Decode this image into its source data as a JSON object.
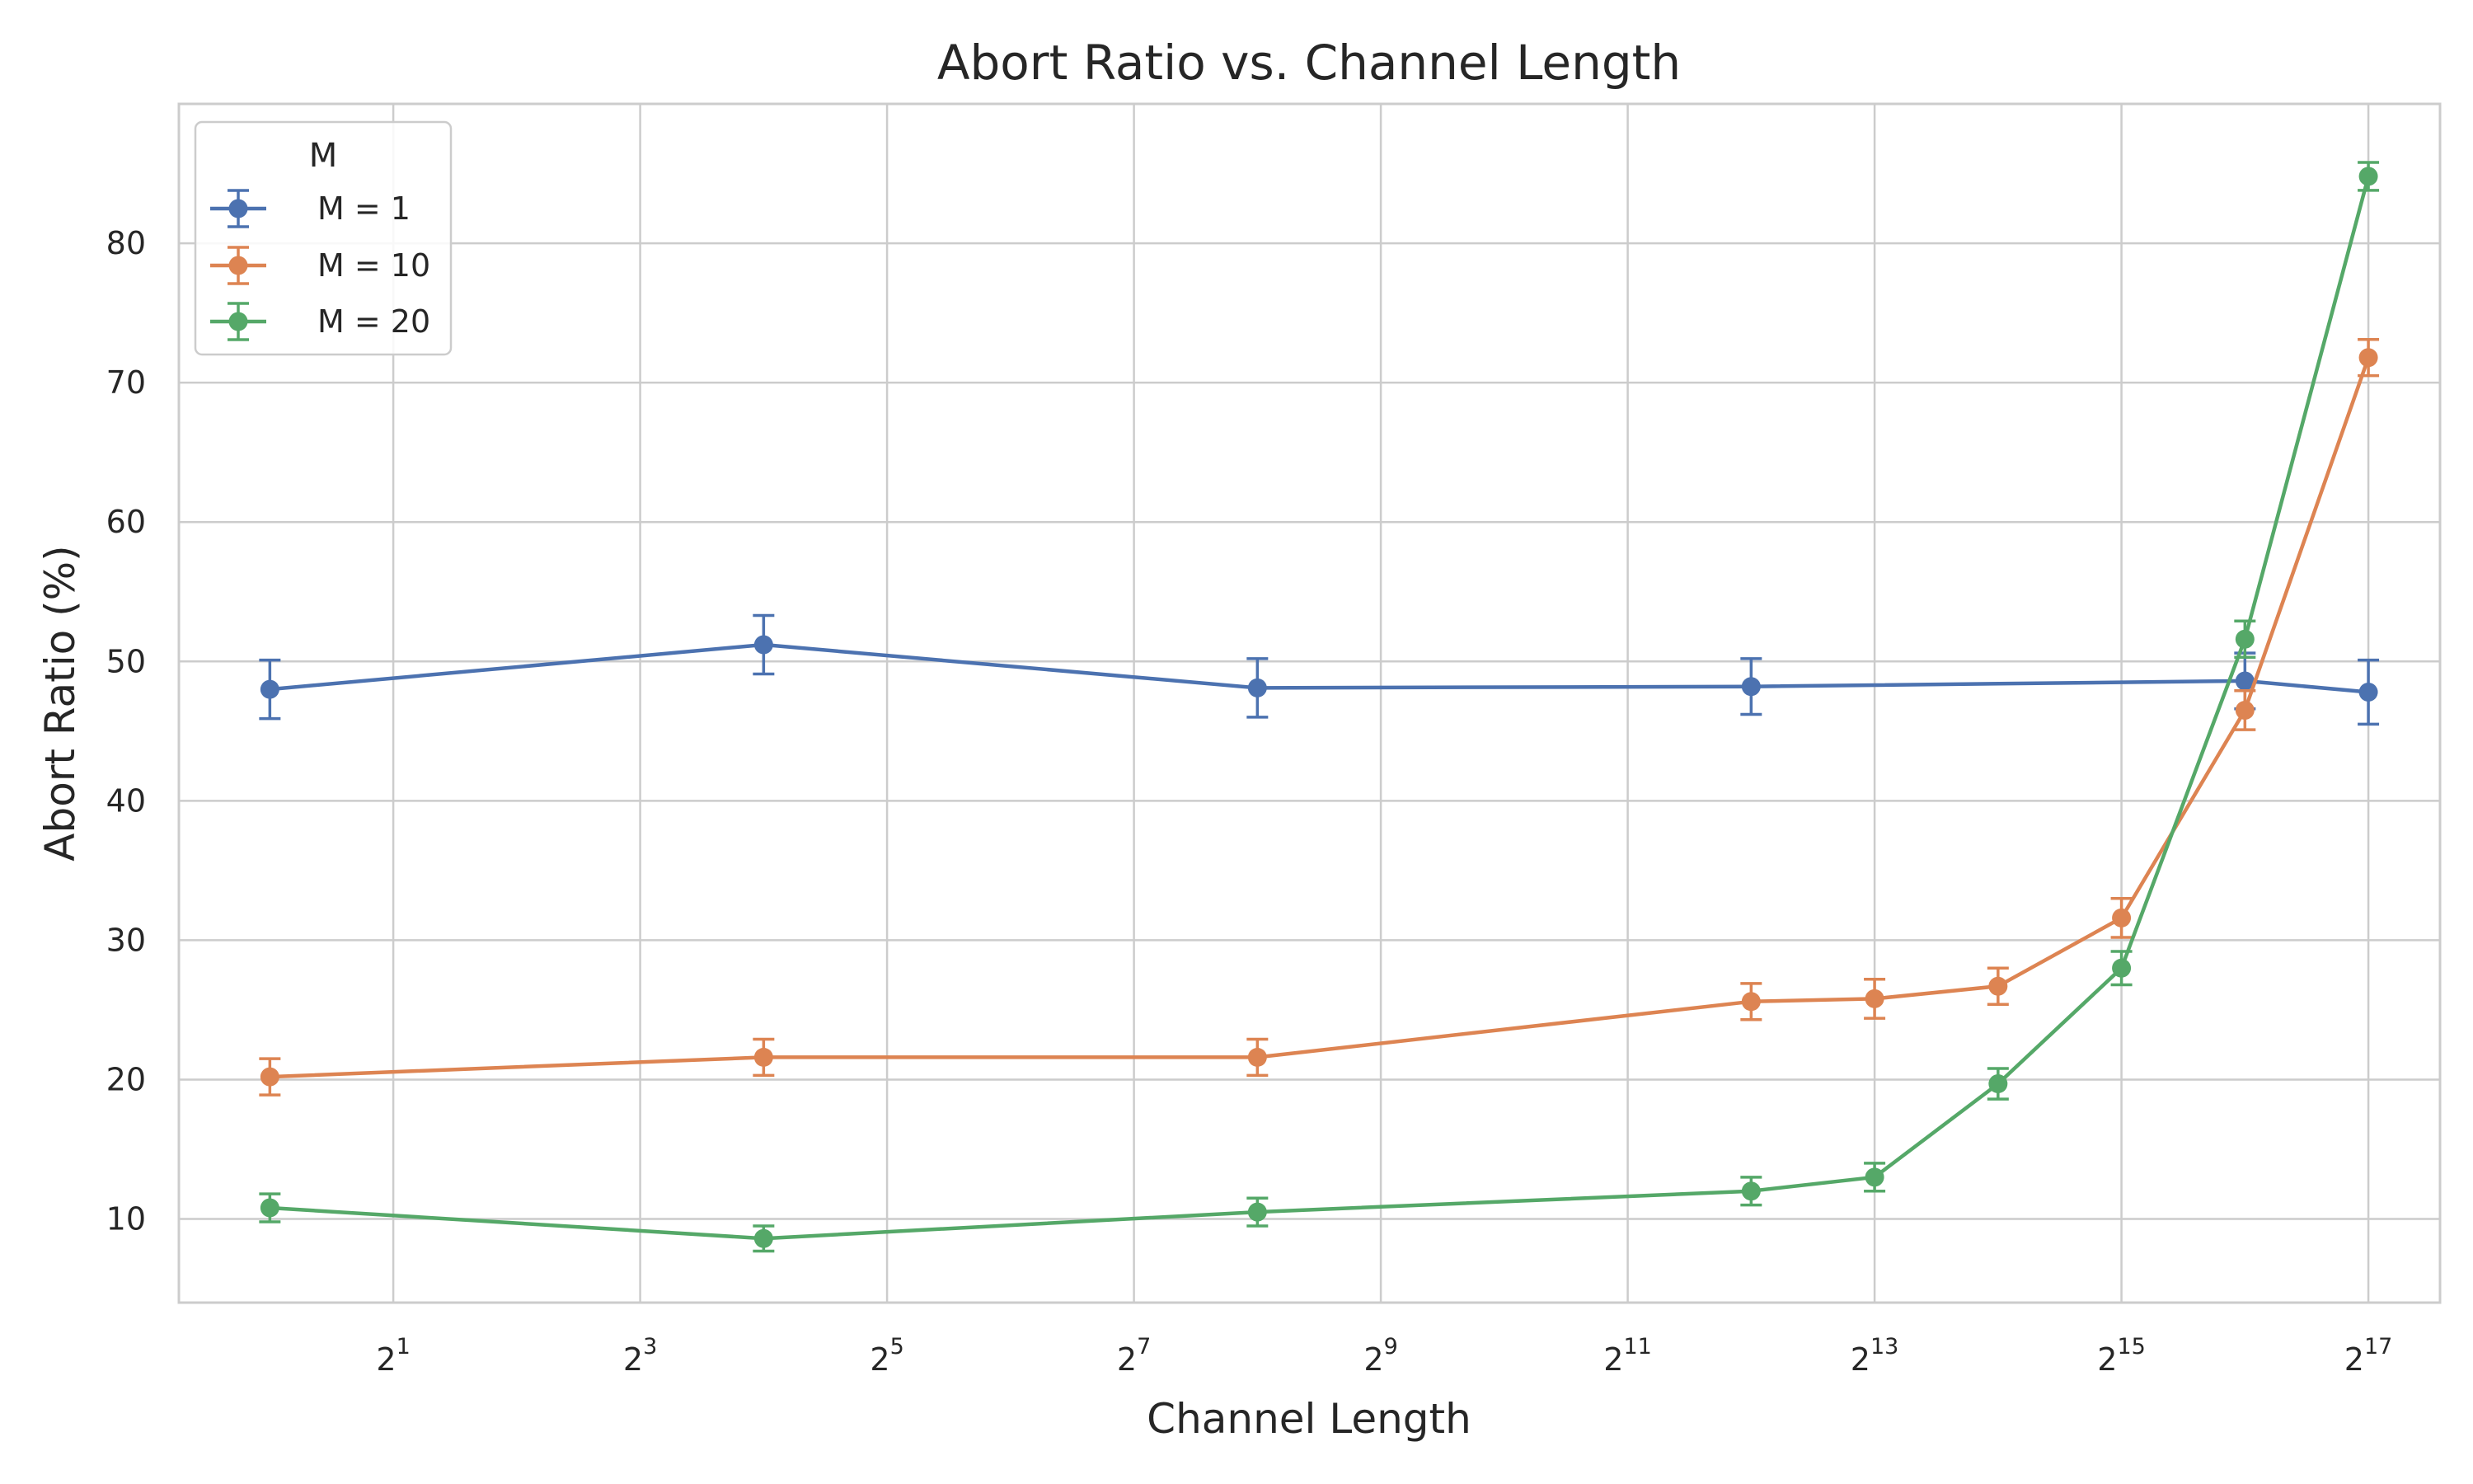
{
  "chart_data": {
    "type": "line",
    "title": "Abort Ratio vs. Channel Length",
    "xlabel": "Channel Length",
    "ylabel": "Abort Ratio (%)",
    "x_scale": "log2",
    "xlim": [
      0.6,
      196000
    ],
    "ylim": [
      4,
      90
    ],
    "grid": true,
    "legend_title": "M",
    "legend_position": "top-left",
    "x_ticks": [
      {
        "value": 2,
        "base": "2",
        "exp": "1"
      },
      {
        "value": 8,
        "base": "2",
        "exp": "3"
      },
      {
        "value": 32,
        "base": "2",
        "exp": "5"
      },
      {
        "value": 128,
        "base": "2",
        "exp": "7"
      },
      {
        "value": 512,
        "base": "2",
        "exp": "9"
      },
      {
        "value": 2048,
        "base": "2",
        "exp": "11"
      },
      {
        "value": 8192,
        "base": "2",
        "exp": "13"
      },
      {
        "value": 32768,
        "base": "2",
        "exp": "15"
      },
      {
        "value": 131072,
        "base": "2",
        "exp": "17"
      }
    ],
    "y_ticks": [
      10,
      20,
      30,
      40,
      50,
      60,
      70,
      80
    ],
    "series": [
      {
        "name": "M = 1",
        "color": "#4c72b0",
        "x": [
          1,
          16,
          256,
          4096,
          65536,
          131072
        ],
        "y": [
          48.0,
          51.2,
          48.1,
          48.2,
          48.6,
          47.8
        ],
        "err": [
          2.1,
          2.1,
          2.1,
          2.0,
          2.0,
          2.3
        ]
      },
      {
        "name": "M = 10",
        "color": "#dd8452",
        "x": [
          1,
          16,
          256,
          4096,
          8192,
          16384,
          32768,
          65536,
          131072
        ],
        "y": [
          20.2,
          21.6,
          21.6,
          25.6,
          25.8,
          26.7,
          31.6,
          46.5,
          71.8
        ],
        "err": [
          1.3,
          1.3,
          1.3,
          1.3,
          1.4,
          1.3,
          1.4,
          1.4,
          1.3
        ]
      },
      {
        "name": "M = 20",
        "color": "#55a868",
        "x": [
          1,
          16,
          256,
          4096,
          8192,
          16384,
          32768,
          65536,
          131072
        ],
        "y": [
          10.8,
          8.6,
          10.5,
          12.0,
          13.0,
          19.7,
          28.0,
          51.6,
          84.8
        ],
        "err": [
          1.0,
          0.9,
          1.0,
          1.0,
          1.0,
          1.1,
          1.2,
          1.3,
          1.0
        ]
      }
    ]
  }
}
